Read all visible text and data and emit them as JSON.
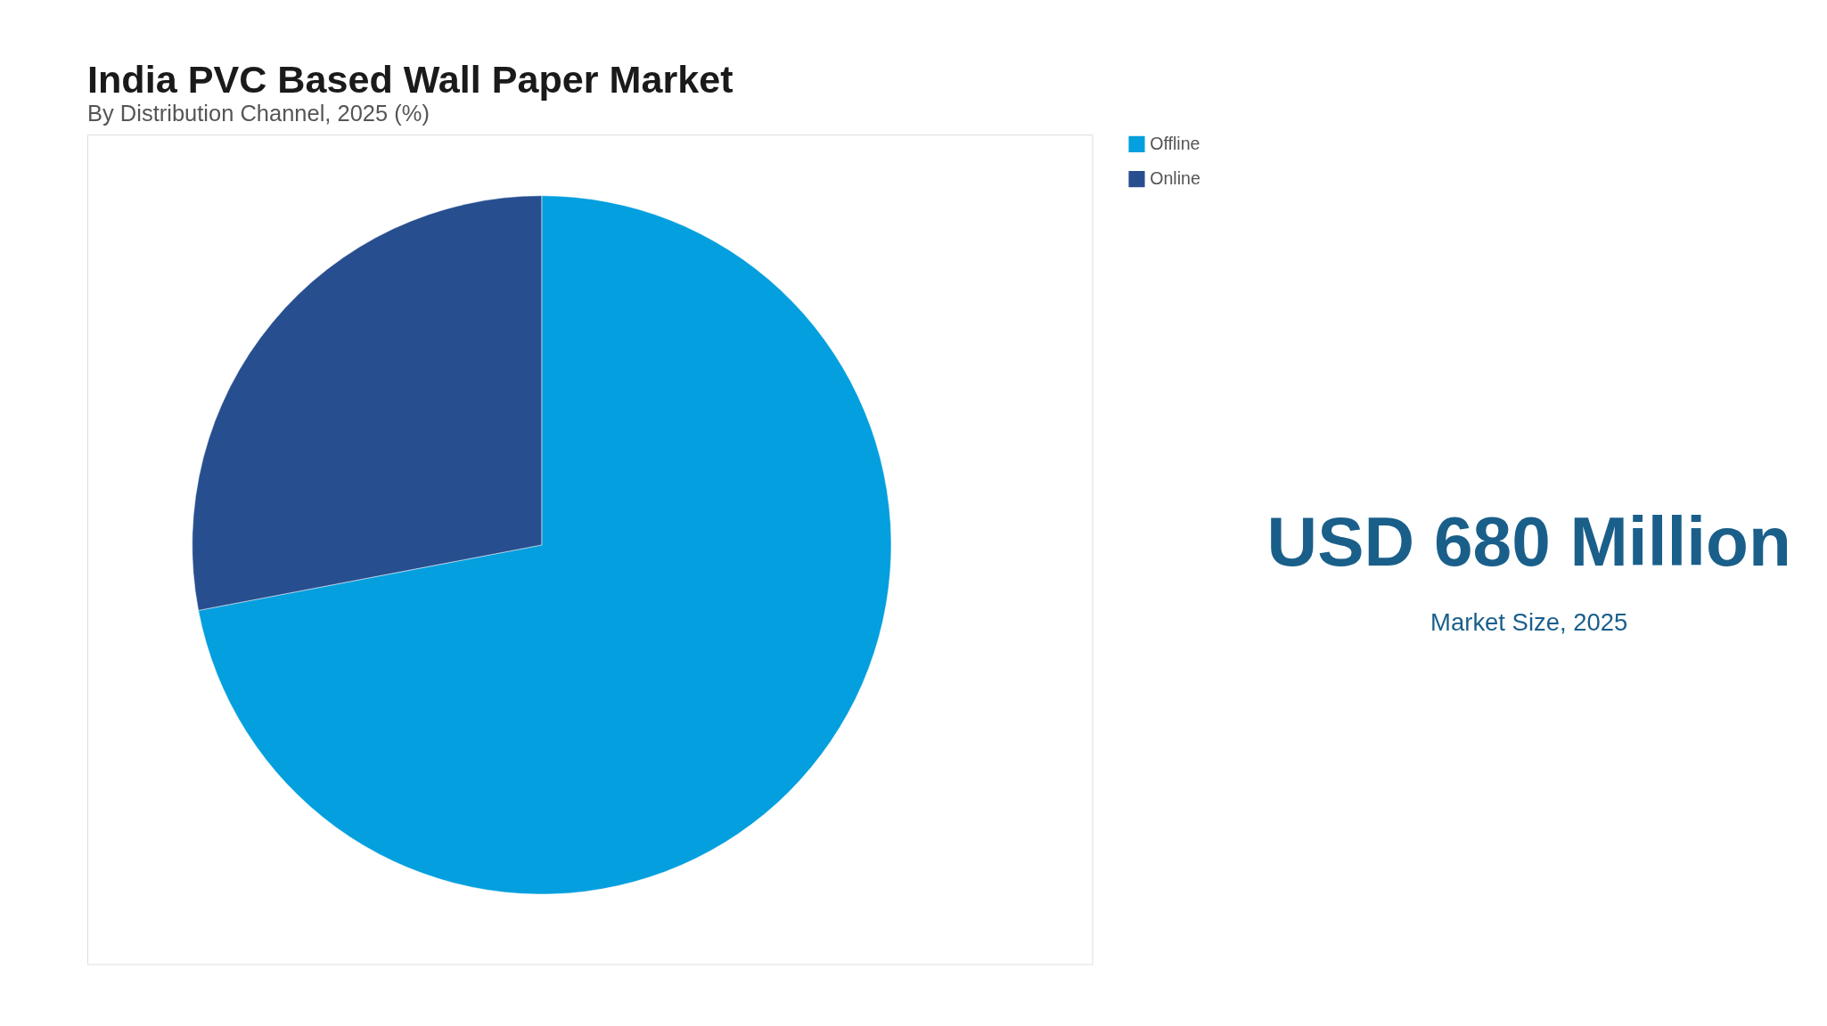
{
  "chart_data": {
    "type": "pie",
    "title": "India PVC Based Wall Paper Market",
    "subtitle": "By Distribution Channel, 2025 (%)",
    "categories": [
      "Offline",
      "Online"
    ],
    "values": [
      72,
      28
    ],
    "colors": [
      "#039fde",
      "#274e8f"
    ],
    "legend": "right",
    "annotations": [
      "USD 680 Million",
      "Market Size, 2025"
    ]
  }
}
